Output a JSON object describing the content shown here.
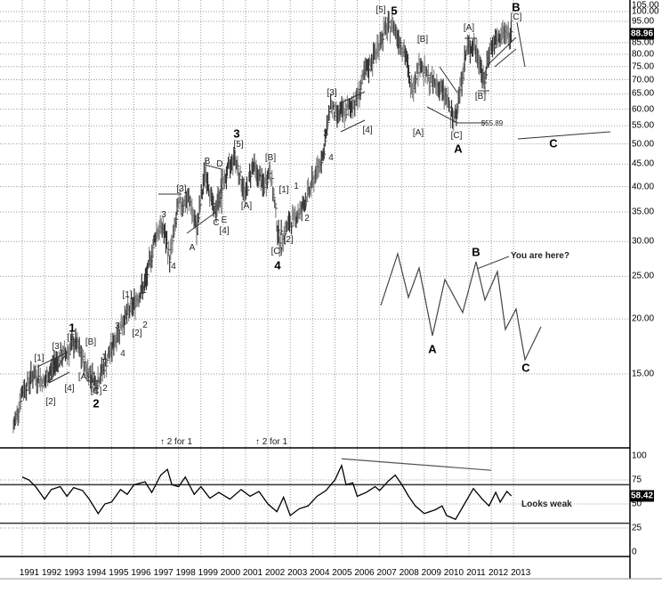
{
  "chart_data": {
    "type": "bar",
    "subtype": "ohlc-price-with-rsi-panel",
    "price_scale": "log",
    "price_axis_ticks": [
      "105.00",
      "100.00",
      "95.00",
      "85.00",
      "80.00",
      "75.00",
      "70.00",
      "65.00",
      "60.00",
      "55.00",
      "50.00",
      "45.00",
      "40.00",
      "35.00",
      "30.00",
      "25.00",
      "20.00",
      "15.00"
    ],
    "last_price": "88.96",
    "ylim": [
      10.5,
      106
    ],
    "x_ticks": [
      "1991",
      "1992",
      "1993",
      "1994",
      "1995",
      "1996",
      "1997",
      "1998",
      "1999",
      "2000",
      "2001",
      "2002",
      "2003",
      "2004",
      "2005",
      "2006",
      "2007",
      "2008",
      "2009",
      "2010",
      "2011",
      "2012",
      "2013"
    ],
    "xlim": [
      1990.5,
      2013.5
    ],
    "grid": true,
    "price_series": {
      "x": [
        1990.6,
        1991.0,
        1991.5,
        1992.0,
        1992.5,
        1993.0,
        1993.4,
        1993.8,
        1994.3,
        1994.7,
        1995.0,
        1995.5,
        1996.0,
        1996.5,
        1997.0,
        1997.3,
        1997.6,
        1998.0,
        1998.5,
        1998.8,
        1999.2,
        1999.6,
        2000.0,
        2000.5,
        2001.0,
        2001.3,
        2001.8,
        2002.1,
        2002.5,
        2003.0,
        2003.5,
        2004.0,
        2004.5,
        2004.8,
        2005.0,
        2005.5,
        2006.0,
        2006.3,
        2006.8,
        2007.2,
        2007.6,
        2007.9,
        2008.2,
        2008.4,
        2008.8,
        2009.2,
        2009.6,
        2010.0,
        2010.3,
        2010.6,
        2010.9,
        2011.2,
        2011.5,
        2011.7,
        2011.9,
        2012.3,
        2012.6,
        2012.8,
        2012.9
      ],
      "close": [
        11.3,
        13.7,
        15.0,
        14.3,
        16.1,
        16.8,
        17.7,
        15.7,
        14.3,
        15.7,
        17.2,
        19.8,
        21.7,
        24.0,
        31.6,
        32.4,
        27.5,
        36.4,
        37.3,
        31.6,
        43.8,
        34.7,
        40.9,
        47.0,
        38.1,
        45.0,
        40.0,
        43.8,
        30.2,
        33.2,
        35.5,
        40.9,
        48.0,
        62.2,
        58.2,
        59.3,
        63.6,
        71.5,
        80.3,
        90.2,
        93.7,
        86.1,
        78.5,
        66.0,
        76.7,
        69.8,
        68.2,
        63.6,
        55.89,
        66.6,
        82.2,
        84.2,
        76.7,
        68.2,
        82.2,
        86.1,
        90.2,
        87.4,
        88.96
      ]
    },
    "rsi": {
      "axis_ticks": [
        "100",
        "75",
        "50",
        "25",
        "0"
      ],
      "ylim": [
        0,
        100
      ],
      "bands": [
        70,
        30
      ],
      "last_value": "58.42",
      "x": [
        1991.0,
        1991.3,
        1991.6,
        1992.0,
        1992.3,
        1992.7,
        1993.0,
        1993.3,
        1993.7,
        1994.0,
        1994.4,
        1994.7,
        1995.0,
        1995.4,
        1995.7,
        1996.0,
        1996.5,
        1996.8,
        1997.2,
        1997.5,
        1997.7,
        1998.0,
        1998.3,
        1998.7,
        1999.0,
        1999.4,
        1999.8,
        2000.3,
        2000.8,
        2001.2,
        2001.6,
        2002.0,
        2002.4,
        2002.7,
        2003.0,
        2003.4,
        2003.8,
        2004.2,
        2004.6,
        2005.0,
        2005.3,
        2005.5,
        2005.8,
        2006.0,
        2006.4,
        2006.8,
        2007.0,
        2007.4,
        2007.7,
        2008.0,
        2008.3,
        2008.6,
        2009.0,
        2009.5,
        2009.8,
        2010.0,
        2010.4,
        2010.8,
        2011.2,
        2011.6,
        2011.9,
        2012.2,
        2012.4,
        2012.7,
        2012.9
      ],
      "values": [
        78,
        75,
        68,
        55,
        65,
        68,
        58,
        67,
        64,
        55,
        40,
        50,
        52,
        65,
        60,
        70,
        73,
        62,
        80,
        86,
        70,
        68,
        78,
        60,
        68,
        56,
        62,
        55,
        65,
        58,
        63,
        50,
        42,
        57,
        38,
        45,
        48,
        58,
        64,
        75,
        90,
        70,
        72,
        58,
        62,
        68,
        64,
        74,
        80,
        70,
        58,
        48,
        40,
        44,
        48,
        38,
        34,
        50,
        66,
        55,
        48,
        62,
        52,
        63,
        58.42
      ],
      "trendline": {
        "x": [
          2005.3,
          2012.0
        ],
        "values": [
          97,
          85
        ]
      }
    },
    "projection_sketch": {
      "labels": [
        "A",
        "B",
        "C"
      ],
      "callout": "You are here?"
    }
  },
  "annotations": [
    "[1]",
    "[2]",
    "[3]",
    "[4]",
    "[5]",
    "1",
    "[A]",
    "[B]",
    "1",
    "[C]",
    "2",
    "2",
    "3",
    "4",
    "[1]",
    "[2]",
    "1",
    "2",
    "3",
    "4",
    "[3]",
    "A",
    "B",
    "D",
    "C",
    "E",
    "[4]",
    "[5]",
    "3",
    "[A]",
    "[B]",
    "[1]",
    "1",
    "2",
    "[2]",
    "[C]",
    "4",
    "3",
    "4",
    "[3]",
    "[4]",
    "[5]",
    "5",
    "[B]",
    "[A]",
    "[C]",
    "A",
    "$55.89",
    "[A]",
    "[B]",
    "B",
    "[C]",
    "C"
  ],
  "projection_labels": [
    "A",
    "B",
    "C"
  ],
  "callout": "You are here?",
  "split_notes": [
    "↑ 2 for 1",
    "↑ 2 for 1"
  ],
  "rsi_note": "Looks weak",
  "colors": {
    "bars": "#555555",
    "rsi_line": "#000000",
    "grid": "#999999",
    "badge_bg": "#000000"
  }
}
